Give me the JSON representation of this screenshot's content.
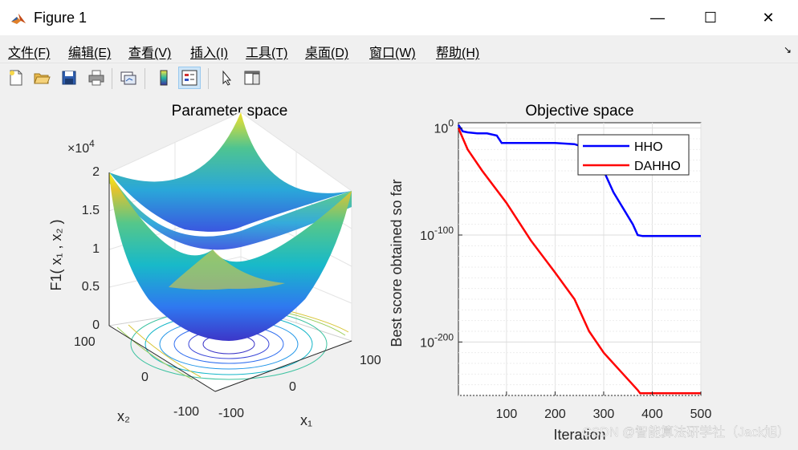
{
  "window": {
    "title": "Figure 1",
    "minimize": "—",
    "maximize": "☐",
    "close": "✕"
  },
  "menu": [
    "文件(F)",
    "编辑(E)",
    "查看(V)",
    "插入(I)",
    "工具(T)",
    "桌面(D)",
    "窗口(W)",
    "帮助(H)"
  ],
  "toolbar": [
    "new-figure-icon",
    "open-icon",
    "save-icon",
    "print-icon",
    "link-plot-icon",
    "colorbar-icon",
    "legend-icon",
    "pointer-icon",
    "property-editor-icon"
  ],
  "colors": {
    "hho": "#0000ff",
    "dahho": "#ff0000",
    "window_bg": "#f0f0f0"
  },
  "left_plot": {
    "title": "Parameter space",
    "exponent": "×10",
    "exponent_power": "4",
    "zlabel": "F1( x₁ , x₂ )",
    "xlabel": "x₁",
    "ylabel": "x₂",
    "z_ticks": [
      "2",
      "1.5",
      "1",
      "0.5",
      "0"
    ],
    "x_ticks": [
      "-100",
      "0",
      "100"
    ],
    "y_ticks": [
      "100",
      "0",
      "-100"
    ]
  },
  "chart_data": {
    "type": "line",
    "title": "Objective space",
    "xlabel": "Iteration",
    "ylabel": "Best score obtained so far",
    "yscale": "log",
    "xlim": [
      1,
      500
    ],
    "ylim_exponent": [
      -250,
      5
    ],
    "x_ticks": [
      "100",
      "200",
      "300",
      "400",
      "500"
    ],
    "y_ticks": [
      {
        "base": "10",
        "exp": "0",
        "value": 0
      },
      {
        "base": "10",
        "exp": "-100",
        "value": -100
      },
      {
        "base": "10",
        "exp": "-200",
        "value": -200
      }
    ],
    "grid": true,
    "legend_position": "top-right",
    "series": [
      {
        "name": "HHO",
        "color": "#0000ff",
        "x": [
          1,
          10,
          20,
          40,
          60,
          80,
          90,
          150,
          200,
          240,
          260,
          280,
          300,
          320,
          340,
          360,
          370,
          380,
          420,
          500
        ],
        "y_exponent": [
          3,
          -3,
          -4,
          -5,
          -5,
          -7,
          -14,
          -14,
          -14,
          -15,
          -18,
          -25,
          -40,
          -60,
          -75,
          -90,
          -100,
          -101,
          -101,
          -101
        ]
      },
      {
        "name": "DAHHO",
        "color": "#ff0000",
        "x": [
          1,
          20,
          50,
          100,
          150,
          200,
          240,
          270,
          300,
          330,
          360,
          370,
          375,
          380,
          420,
          500
        ],
        "y_exponent": [
          0,
          -20,
          -40,
          -70,
          -105,
          -135,
          -160,
          -190,
          -210,
          -225,
          -240,
          -245,
          -248,
          -248,
          -248,
          -248
        ]
      }
    ]
  },
  "watermark": "CSDN @智能算法研学社（Jack旭）"
}
